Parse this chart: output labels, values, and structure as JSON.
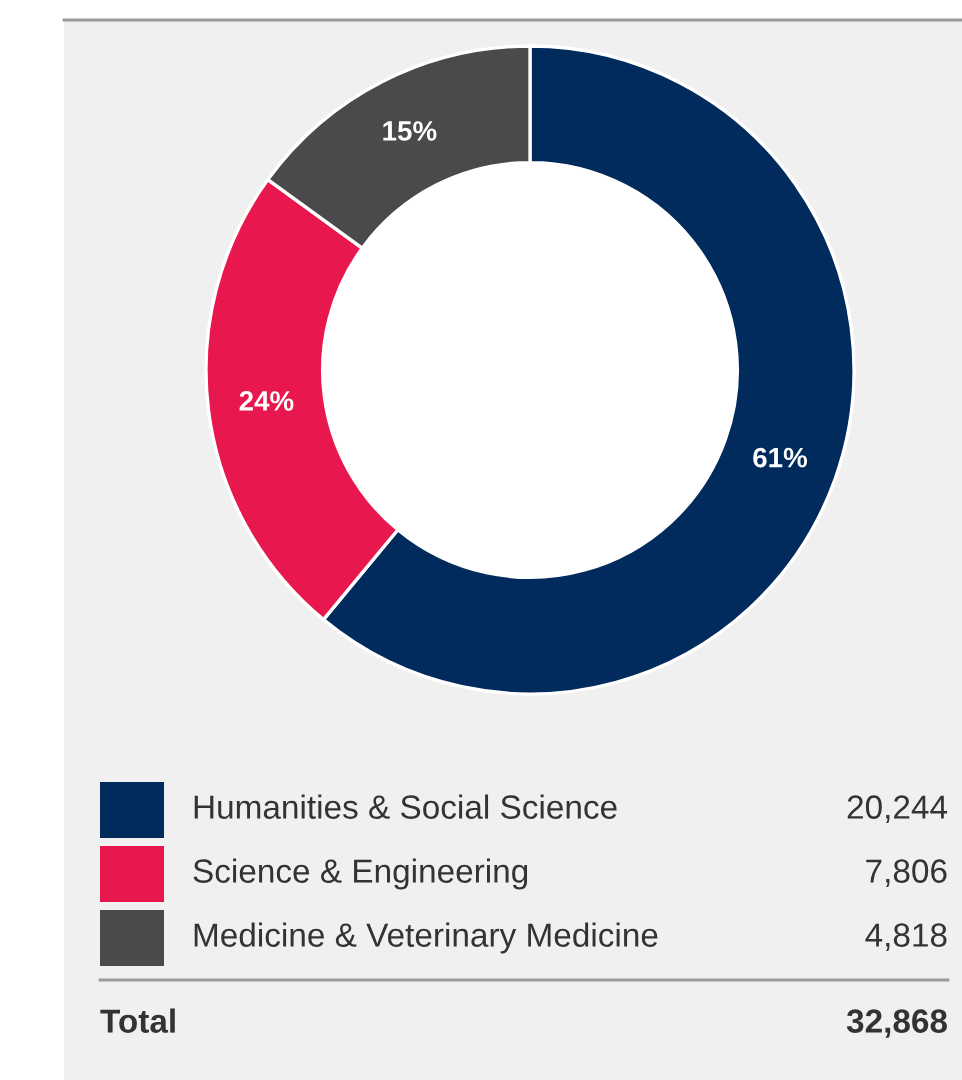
{
  "chart_data": {
    "type": "donut",
    "categories": [
      "Humanities & Social Science",
      "Science & Engineering",
      "Medicine & Veterinary Medicine"
    ],
    "values": [
      61,
      24,
      15
    ],
    "colors": [
      "#002b5c",
      "#e8174d",
      "#4a4a4c"
    ],
    "value_labels": [
      "61%",
      "24%",
      "15%"
    ],
    "legend": "bottom",
    "annotations": [
      "20,244",
      "7,806",
      "4,818",
      "Total",
      "32,868"
    ]
  }
}
